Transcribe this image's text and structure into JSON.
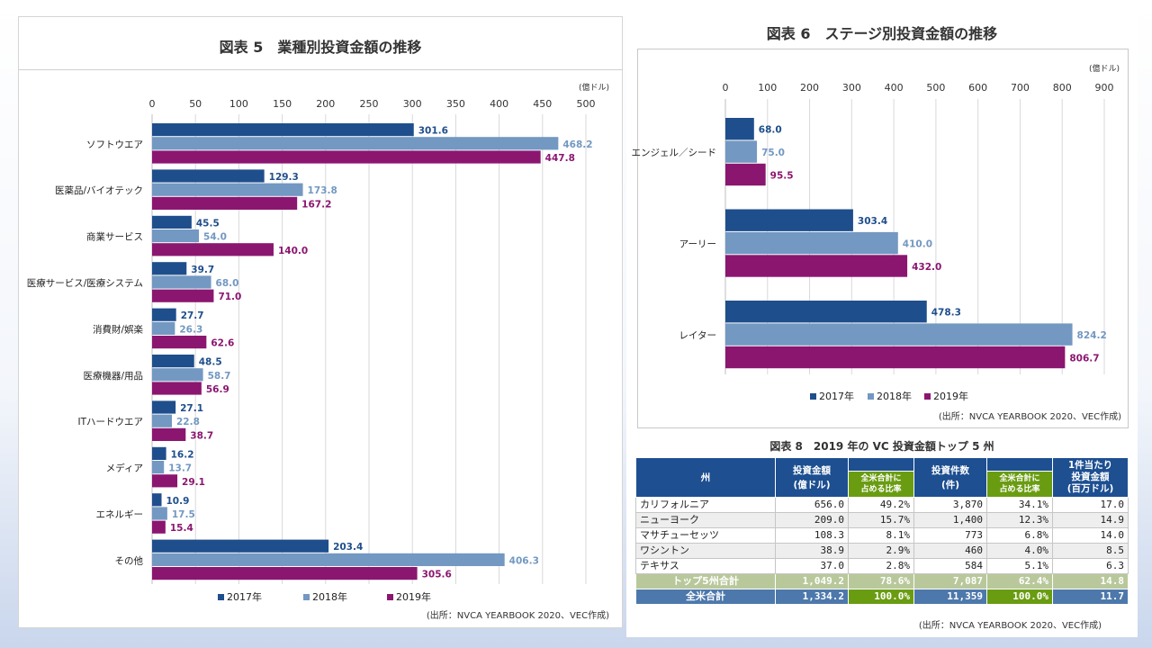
{
  "colors": {
    "y2017": "#1f4e8c",
    "y2018": "#7398c2",
    "y2019": "#8b1670"
  },
  "chart5": {
    "title": "図表 5　業種別投資金額の推移",
    "unit": "(億ドル)",
    "source": "(出所：NVCA YEARBOOK 2020、VEC作成)",
    "ticks": [
      "0",
      "50",
      "100",
      "150",
      "200",
      "250",
      "300",
      "350",
      "400",
      "450",
      "500"
    ]
  },
  "chart6": {
    "title": "図表 6　ステージ別投資金額の推移",
    "unit": "(億ドル)",
    "source": "(出所：NVCA YEARBOOK 2020、VEC作成)",
    "ticks": [
      "0",
      "100",
      "200",
      "300",
      "400",
      "500",
      "600",
      "700",
      "800",
      "900"
    ]
  },
  "chart_data": [
    {
      "type": "bar",
      "orientation": "horizontal",
      "title": "図表 5　業種別投資金額の推移",
      "unit": "(億ドル)",
      "xlim": [
        0,
        500
      ],
      "grid": true,
      "legend_position": "bottom",
      "categories": [
        "ソフトウエア",
        "医薬品/バイオテック",
        "商業サービス",
        "医療サービス/医療システム",
        "消費財/娯楽",
        "医療機器/用品",
        "ITハードウエア",
        "メディア",
        "エネルギー",
        "その他"
      ],
      "series": [
        {
          "name": "2017年",
          "values": [
            301.6,
            129.3,
            45.5,
            39.7,
            27.7,
            48.5,
            27.1,
            16.2,
            10.9,
            203.4
          ]
        },
        {
          "name": "2018年",
          "values": [
            468.2,
            173.8,
            54.0,
            68.0,
            26.3,
            58.7,
            22.8,
            13.7,
            17.5,
            406.3
          ]
        },
        {
          "name": "2019年",
          "values": [
            447.8,
            167.2,
            140.0,
            71.0,
            62.6,
            56.9,
            38.7,
            29.1,
            15.4,
            305.6
          ]
        }
      ]
    },
    {
      "type": "bar",
      "orientation": "horizontal",
      "title": "図表 6　ステージ別投資金額の推移",
      "unit": "(億ドル)",
      "xlim": [
        0,
        900
      ],
      "grid": true,
      "legend_position": "bottom",
      "categories": [
        "エンジェル／シード",
        "アーリー",
        "レイター"
      ],
      "series": [
        {
          "name": "2017年",
          "values": [
            68.0,
            303.4,
            478.3
          ]
        },
        {
          "name": "2018年",
          "values": [
            75.0,
            410.0,
            824.2
          ]
        },
        {
          "name": "2019年",
          "values": [
            95.5,
            432.0,
            806.7
          ]
        }
      ]
    },
    {
      "type": "table",
      "title": "図表 8　2019 年の VC 投資金額トップ 5 州",
      "source": "(出所：NVCA YEARBOOK 2020、VEC作成)",
      "headers": {
        "state": "州",
        "amount": "投資金額\n(億ドル)",
        "amount_share": "全米合計に\n占める比率",
        "count": "投資件数\n(件)",
        "count_share": "全米合計に\n占める比率",
        "per_deal": "1件当たり\n投資金額\n(百万ドル)"
      },
      "rows": [
        [
          "カリフォルニア",
          "656.0",
          "49.2%",
          "3,870",
          "34.1%",
          "17.0"
        ],
        [
          "ニューヨーク",
          "209.0",
          "15.7%",
          "1,400",
          "12.3%",
          "14.9"
        ],
        [
          "マサチューセッツ",
          "108.3",
          "8.1%",
          "773",
          "6.8%",
          "14.0"
        ],
        [
          "ワシントン",
          "38.9",
          "2.9%",
          "460",
          "4.0%",
          "8.5"
        ],
        [
          "テキサス",
          "37.0",
          "2.8%",
          "584",
          "5.1%",
          "6.3"
        ]
      ],
      "top5_total": [
        "トップ5州合計",
        "1,049.2",
        "78.6%",
        "7,087",
        "62.4%",
        "14.8"
      ],
      "us_total": [
        "全米合計",
        "1,334.2",
        "100.0%",
        "11,359",
        "100.0%",
        "11.7"
      ]
    }
  ]
}
